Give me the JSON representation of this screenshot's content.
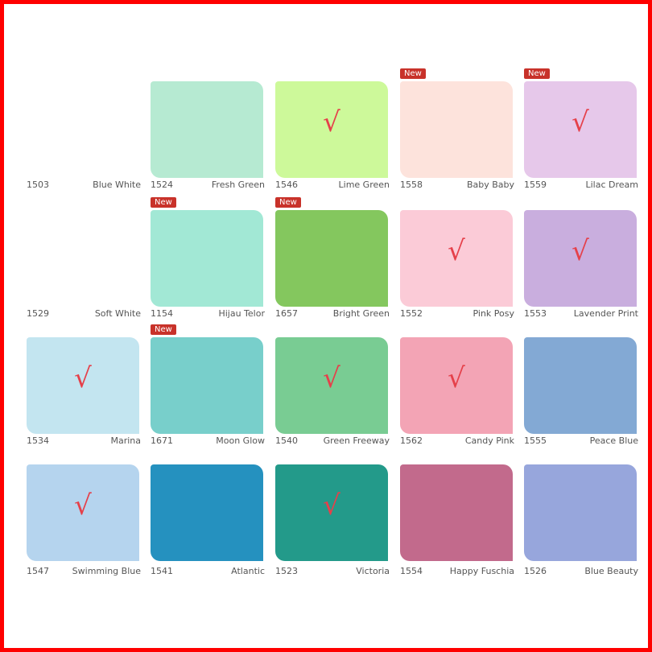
{
  "colors": {
    "check": "#e5404a",
    "badge": "#c8322a",
    "frame": "#ff0000"
  },
  "badge_label": "New",
  "check_mark": "√",
  "rows": [
    [
      {
        "code": "1503",
        "name": "Blue White",
        "color": "#ffffff",
        "checked": false,
        "new": false
      },
      {
        "code": "1524",
        "name": "Fresh Green",
        "color": "#b6ead2",
        "checked": false,
        "new": false
      },
      {
        "code": "1546",
        "name": "Lime Green",
        "color": "#cdf99a",
        "checked": true,
        "new": false
      },
      {
        "code": "1558",
        "name": "Baby Baby",
        "color": "#fde3dc",
        "checked": false,
        "new": true
      },
      {
        "code": "1559",
        "name": "Lilac Dream",
        "color": "#e6c8ea",
        "checked": true,
        "new": true
      }
    ],
    [
      {
        "code": "1529",
        "name": "Soft White",
        "color": "#ffffff",
        "checked": false,
        "new": false
      },
      {
        "code": "1154",
        "name": "Hijau Telor",
        "color": "#a2e8d5",
        "checked": false,
        "new": true
      },
      {
        "code": "1657",
        "name": "Bright Green",
        "color": "#84c75e",
        "checked": false,
        "new": true
      },
      {
        "code": "1552",
        "name": "Pink Posy",
        "color": "#fbcbd7",
        "checked": true,
        "new": false
      },
      {
        "code": "1553",
        "name": "Lavender Print",
        "color": "#c9aede",
        "checked": true,
        "new": false
      }
    ],
    [
      {
        "code": "1534",
        "name": "Marina",
        "color": "#c3e5f0",
        "checked": true,
        "new": false
      },
      {
        "code": "1671",
        "name": "Moon Glow",
        "color": "#78cfcb",
        "checked": false,
        "new": true
      },
      {
        "code": "1540",
        "name": "Green Freeway",
        "color": "#79cc93",
        "checked": true,
        "new": false
      },
      {
        "code": "1562",
        "name": "Candy Pink",
        "color": "#f3a4b5",
        "checked": true,
        "new": false
      },
      {
        "code": "1555",
        "name": "Peace Blue",
        "color": "#83a9d4",
        "checked": false,
        "new": false
      }
    ],
    [
      {
        "code": "1547",
        "name": "Swimming Blue",
        "color": "#b5d4ee",
        "checked": true,
        "new": false
      },
      {
        "code": "1541",
        "name": "Atlantic",
        "color": "#2591bf",
        "checked": false,
        "new": false
      },
      {
        "code": "1523",
        "name": "Victoria",
        "color": "#239a8a",
        "checked": true,
        "new": false
      },
      {
        "code": "1554",
        "name": "Happy Fuschia",
        "color": "#c26a8c",
        "checked": false,
        "new": false
      },
      {
        "code": "1526",
        "name": "Blue Beauty",
        "color": "#97a6dc",
        "checked": false,
        "new": false
      }
    ]
  ]
}
